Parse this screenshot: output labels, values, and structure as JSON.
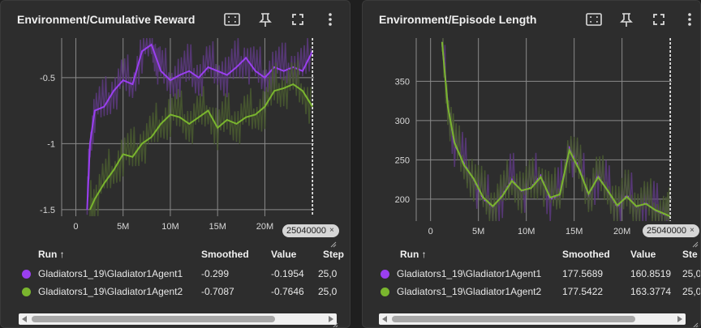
{
  "colors": {
    "agent1": "#9a3ff0",
    "agent2": "#7ab52e",
    "agent1_band": "#5d3a80",
    "agent2_band": "#4a5c30"
  },
  "panels": [
    {
      "title": "Environment/Cumulative Reward",
      "icons": [
        "fit-domain-icon",
        "pin-icon",
        "fullscreen-icon",
        "more-vert-icon"
      ],
      "step_chip": "25040000",
      "chip_close": "×",
      "y_ticks": [
        "-0.5",
        "-1",
        "-1.5"
      ],
      "x_ticks": [
        "0",
        "5M",
        "10M",
        "15M",
        "20M"
      ],
      "table": {
        "headers": {
          "run": "Run ↑",
          "smoothed": "Smoothed",
          "value": "Value",
          "step": "Step"
        },
        "rows": [
          {
            "run": "Gladiators1_19\\Gladiator1Agent1",
            "smoothed": "-0.299",
            "value": "-0.1954",
            "step": "25,0"
          },
          {
            "run": "Gladiators1_19\\Gladiator1Agent2",
            "smoothed": "-0.7087",
            "value": "-0.7646",
            "step": "25,0"
          }
        ]
      }
    },
    {
      "title": "Environment/Episode Length",
      "icons": [
        "fit-domain-icon",
        "pin-icon",
        "fullscreen-icon",
        "more-vert-icon"
      ],
      "step_chip": "25040000",
      "chip_close": "×",
      "y_ticks": [
        "350",
        "300",
        "250",
        "200"
      ],
      "x_ticks": [
        "0",
        "5M",
        "10M",
        "15M",
        "20M"
      ],
      "table": {
        "headers": {
          "run": "Run ↑",
          "smoothed": "Smoothed",
          "value": "Value",
          "step": "Ste"
        },
        "rows": [
          {
            "run": "Gladiators1_19\\Gladiator1Agent1",
            "smoothed": "177.5689",
            "value": "160.8519",
            "step": "25,0"
          },
          {
            "run": "Gladiators1_19\\Gladiator1Agent2",
            "smoothed": "177.5422",
            "value": "163.3774",
            "step": "25,0"
          }
        ]
      }
    }
  ],
  "chart_data": [
    {
      "type": "line",
      "title": "Environment/Cumulative Reward",
      "xlabel": "",
      "ylabel": "",
      "xlim": [
        -1500000,
        25200000
      ],
      "ylim": [
        -1.55,
        -0.2
      ],
      "grid": true,
      "series": [
        {
          "name": "Gladiators1_19\\Gladiator1Agent1",
          "x": [
            1200000,
            1500000,
            2000000,
            3000000,
            4000000,
            5000000,
            6000000,
            7000000,
            8000000,
            8500000,
            9000000,
            10000000,
            11000000,
            12000000,
            13000000,
            14000000,
            15000000,
            16000000,
            17000000,
            18000000,
            19000000,
            20000000,
            21000000,
            22000000,
            23000000,
            24000000,
            25040000
          ],
          "y": [
            -1.5,
            -1.0,
            -0.75,
            -0.72,
            -0.6,
            -0.52,
            -0.55,
            -0.3,
            -0.25,
            -0.35,
            -0.45,
            -0.52,
            -0.48,
            -0.45,
            -0.5,
            -0.42,
            -0.45,
            -0.48,
            -0.42,
            -0.35,
            -0.45,
            -0.5,
            -0.42,
            -0.45,
            -0.42,
            -0.45,
            -0.3
          ]
        },
        {
          "name": "Gladiators1_19\\Gladiator1Agent2",
          "x": [
            1500000,
            2000000,
            3000000,
            4000000,
            5000000,
            6000000,
            7000000,
            8000000,
            9000000,
            10000000,
            11000000,
            12000000,
            13000000,
            14000000,
            15000000,
            16000000,
            17000000,
            18000000,
            19000000,
            20000000,
            21000000,
            22000000,
            23000000,
            24000000,
            25040000
          ],
          "y": [
            -1.5,
            -1.42,
            -1.3,
            -1.2,
            -1.08,
            -1.1,
            -1.0,
            -0.95,
            -0.85,
            -0.78,
            -0.8,
            -0.85,
            -0.8,
            -0.75,
            -0.88,
            -0.82,
            -0.85,
            -0.8,
            -0.78,
            -0.72,
            -0.6,
            -0.58,
            -0.55,
            -0.6,
            -0.72
          ]
        }
      ]
    },
    {
      "type": "line",
      "title": "Environment/Episode Length",
      "xlabel": "",
      "ylabel": "",
      "xlim": [
        -1500000,
        25200000
      ],
      "ylim": [
        172,
        405
      ],
      "grid": true,
      "series": [
        {
          "name": "Gladiators1_19\\Gladiator1Agent1",
          "x": [
            1200000,
            1800000,
            2500000,
            3500000,
            4500000,
            5500000,
            6500000,
            7500000,
            8500000,
            9500000,
            10500000,
            11500000,
            12500000,
            13500000,
            14500000,
            15500000,
            16500000,
            17500000,
            18500000,
            19500000,
            20500000,
            21500000,
            22500000,
            23500000,
            24500000,
            25040000
          ],
          "y": [
            400,
            320,
            270,
            245,
            225,
            200,
            190,
            205,
            225,
            210,
            215,
            230,
            200,
            205,
            265,
            240,
            205,
            230,
            210,
            190,
            205,
            190,
            195,
            185,
            180,
            178
          ]
        },
        {
          "name": "Gladiators1_19\\Gladiator1Agent2",
          "x": [
            1200000,
            1800000,
            2500000,
            3500000,
            4500000,
            5500000,
            6500000,
            7500000,
            8500000,
            9500000,
            10500000,
            11500000,
            12500000,
            13500000,
            14500000,
            15500000,
            16500000,
            17500000,
            18500000,
            19500000,
            20500000,
            21500000,
            22500000,
            23500000,
            24500000,
            25040000
          ],
          "y": [
            400,
            318,
            272,
            243,
            226,
            202,
            191,
            204,
            223,
            211,
            214,
            228,
            202,
            206,
            262,
            238,
            207,
            228,
            211,
            192,
            203,
            191,
            194,
            186,
            181,
            178
          ]
        }
      ]
    }
  ]
}
